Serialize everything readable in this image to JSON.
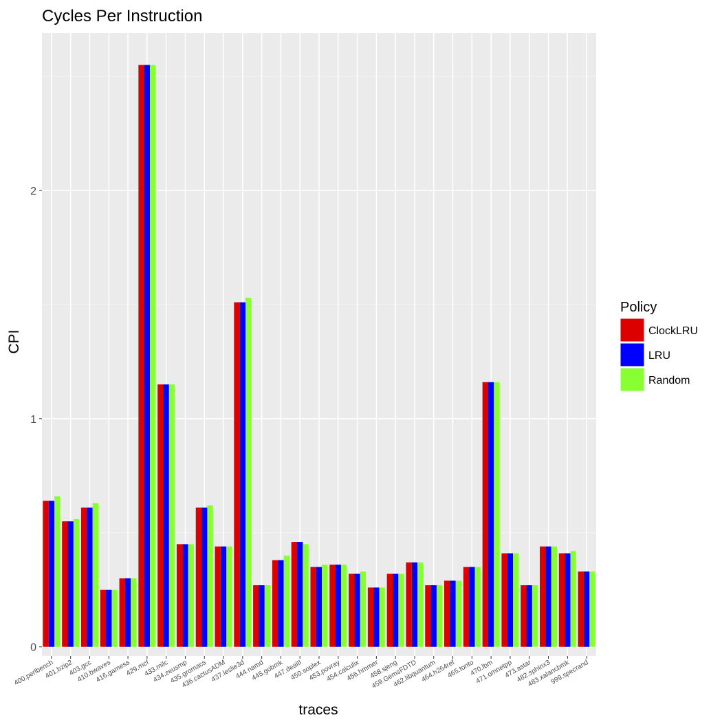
{
  "chart_data": {
    "type": "bar",
    "title": "Cycles Per Instruction",
    "xlabel": "traces",
    "ylabel": "CPI",
    "ylim": [
      -0.04,
      2.69
    ],
    "yticks": [
      0,
      1,
      2
    ],
    "grid": true,
    "legend_position": "right",
    "legend_title": "Policy",
    "categories": [
      "400.perlbench",
      "401.bzip2",
      "403.gcc",
      "410.bwaves",
      "416.gamess",
      "429.mcf",
      "433.milc",
      "434.zeusmp",
      "435.gromacs",
      "436.cactusADM",
      "437.leslie3d",
      "444.namd",
      "445.gobmk",
      "447.dealII",
      "450.soplex",
      "453.povray",
      "454.calculix",
      "456.hmmer",
      "458.sjeng",
      "459.GemsFDTD",
      "462.libquantum",
      "464.h264ref",
      "465.tonto",
      "470.lbm",
      "471.omnetpp",
      "473.astar",
      "482.sphinx3",
      "483.xalancbmk",
      "999.specrand"
    ],
    "series": [
      {
        "name": "ClockLRU",
        "color": "#dd0000",
        "values": [
          0.64,
          0.55,
          0.61,
          0.25,
          0.3,
          2.55,
          1.15,
          0.45,
          0.61,
          0.44,
          1.51,
          0.27,
          0.38,
          0.46,
          0.35,
          0.36,
          0.32,
          0.26,
          0.32,
          0.37,
          0.27,
          0.29,
          0.35,
          1.16,
          0.41,
          0.27,
          0.44,
          0.41,
          0.33
        ]
      },
      {
        "name": "LRU",
        "color": "#0000ff",
        "values": [
          0.64,
          0.55,
          0.61,
          0.25,
          0.3,
          2.55,
          1.15,
          0.45,
          0.61,
          0.44,
          1.51,
          0.27,
          0.38,
          0.46,
          0.35,
          0.36,
          0.32,
          0.26,
          0.32,
          0.37,
          0.27,
          0.29,
          0.35,
          1.16,
          0.41,
          0.27,
          0.44,
          0.41,
          0.33
        ]
      },
      {
        "name": "Random",
        "color": "#88ff33",
        "values": [
          0.66,
          0.56,
          0.63,
          0.25,
          0.3,
          2.55,
          1.15,
          0.45,
          0.62,
          0.44,
          1.53,
          0.27,
          0.4,
          0.45,
          0.36,
          0.36,
          0.33,
          0.26,
          0.32,
          0.37,
          0.27,
          0.29,
          0.35,
          1.16,
          0.41,
          0.27,
          0.44,
          0.42,
          0.33
        ]
      }
    ]
  }
}
